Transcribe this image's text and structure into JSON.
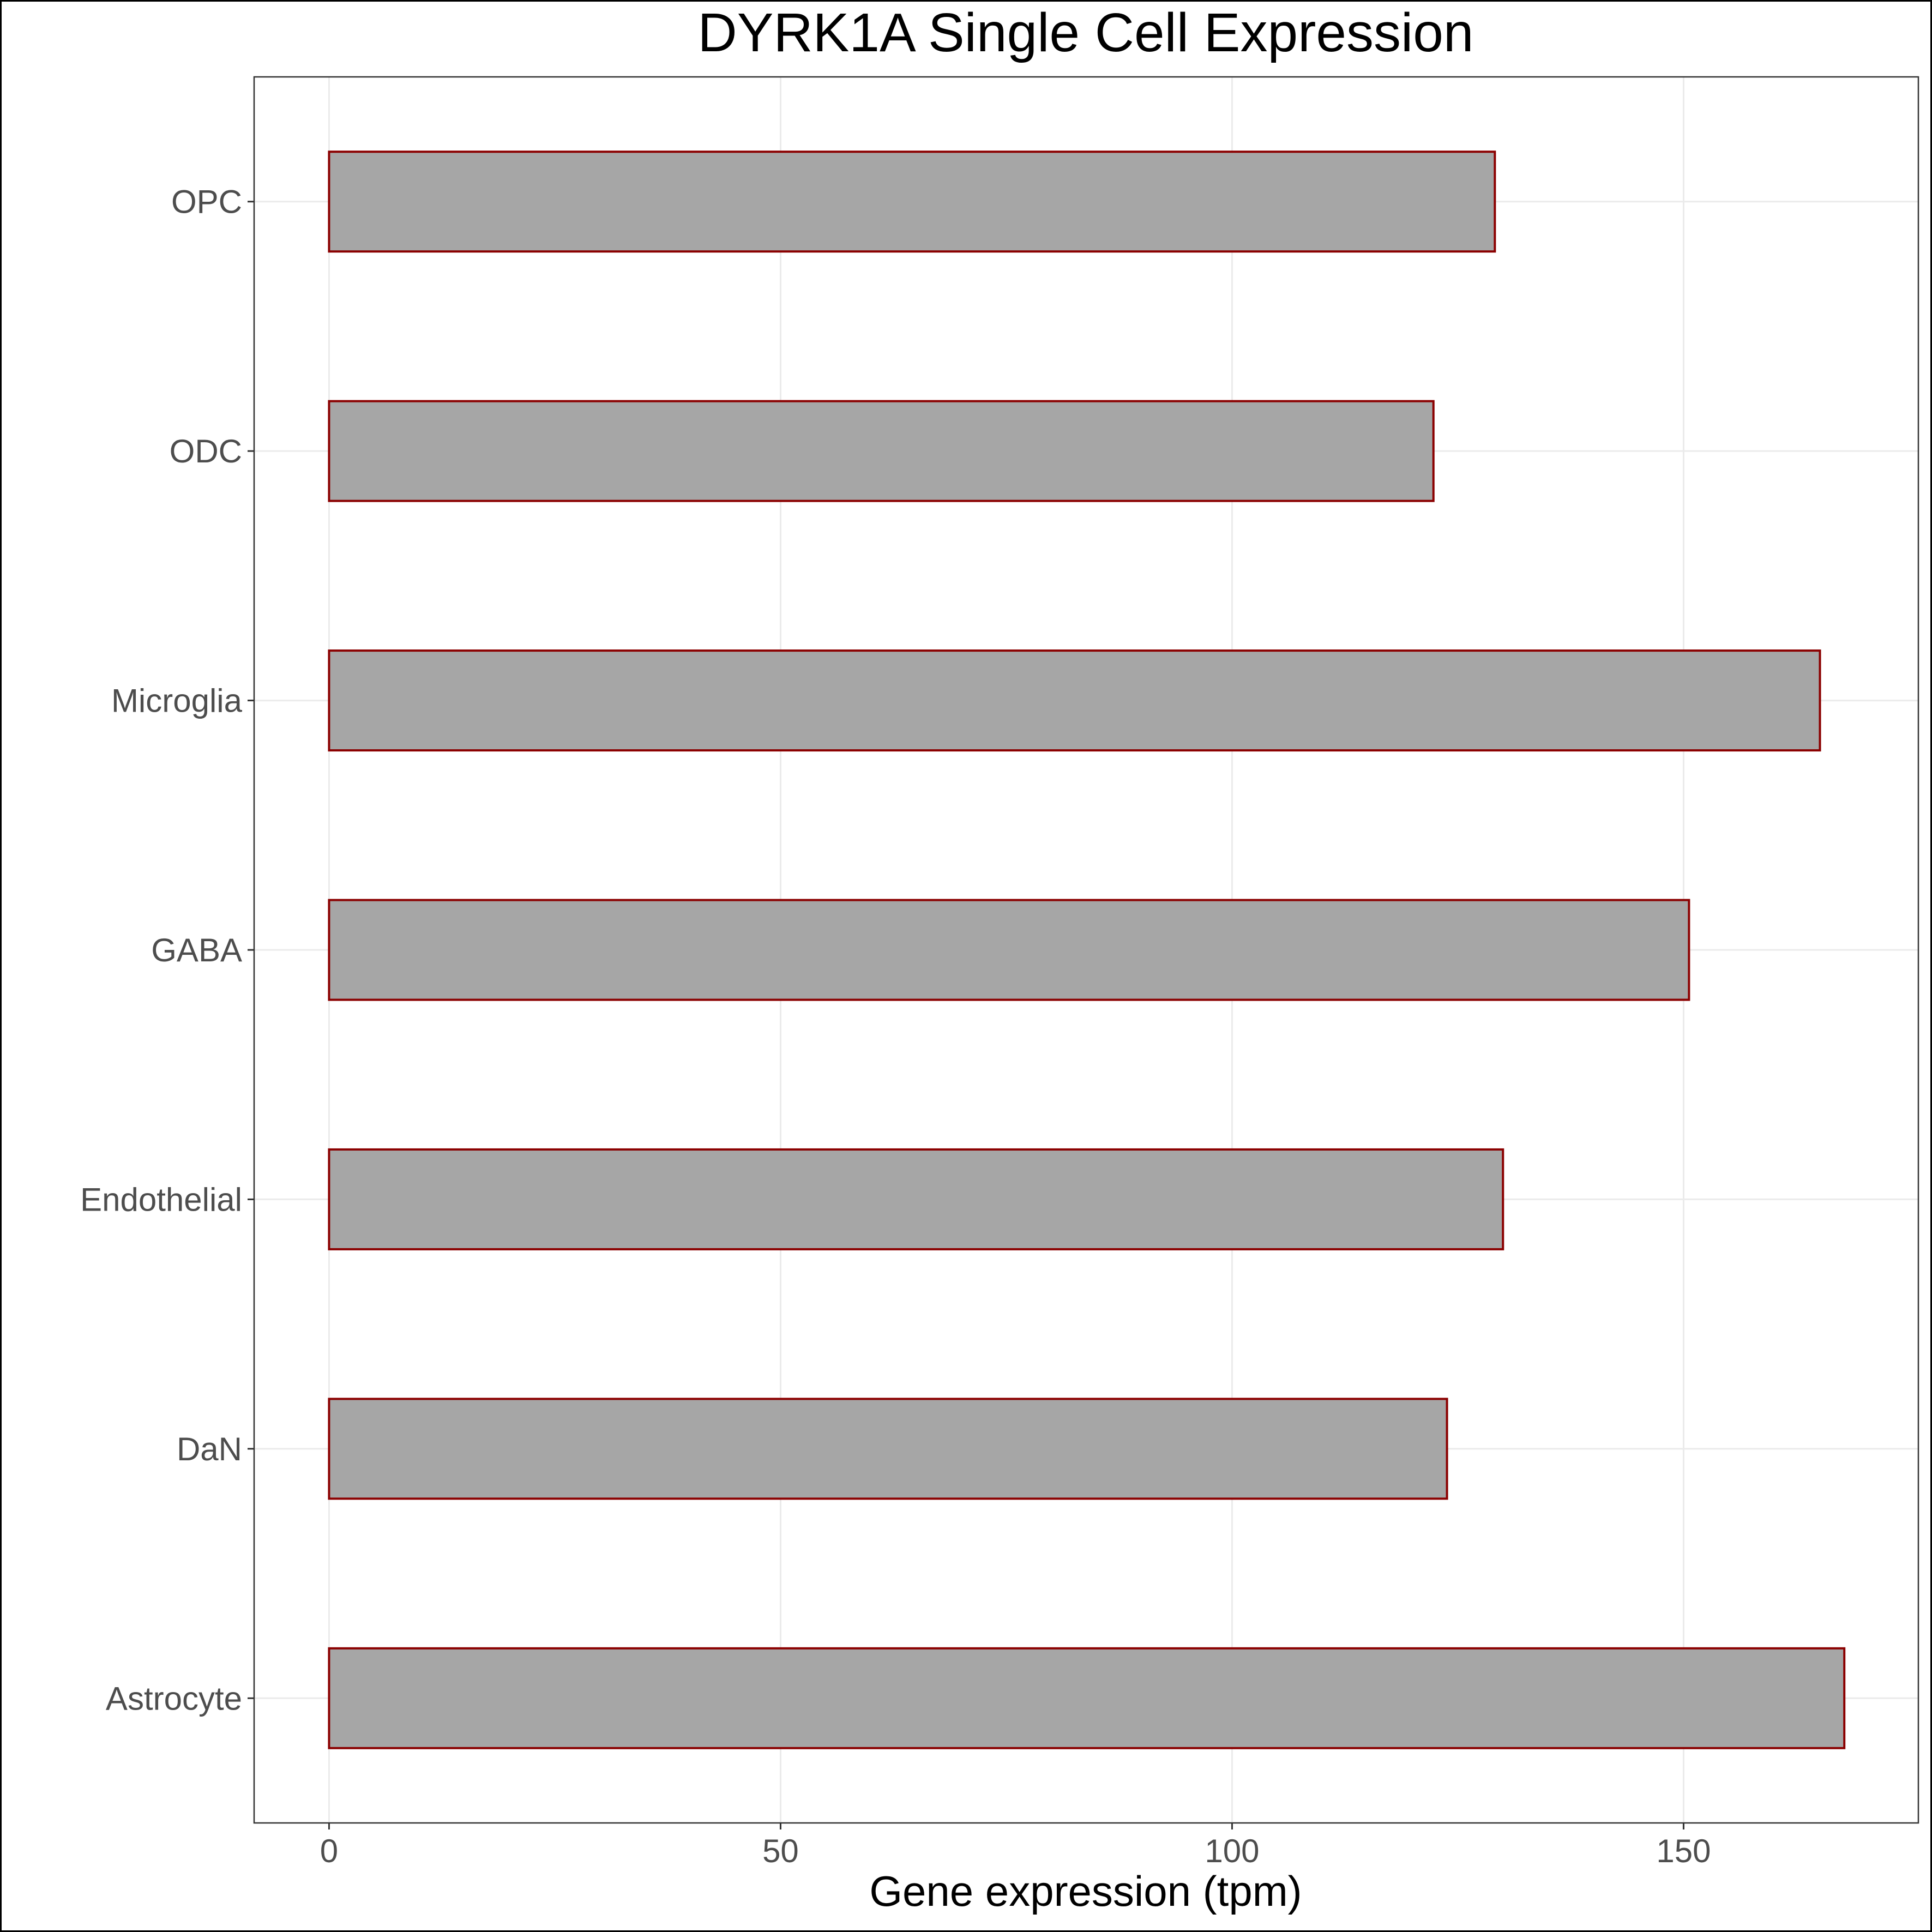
{
  "chart_data": {
    "type": "bar",
    "orientation": "horizontal",
    "title": "DYRK1A Single Cell Expression",
    "xlabel": "Gene expression (tpm)",
    "ylabel": "",
    "categories": [
      "Astrocyte",
      "DaN",
      "Endothelial",
      "GABA",
      "Microglia",
      "ODC",
      "OPC"
    ],
    "values": [
      167.8,
      123.8,
      130.0,
      150.6,
      165.1,
      122.3,
      129.1
    ],
    "xlim": [
      -8.3,
      176.0
    ],
    "xticks": [
      0,
      50,
      100,
      150
    ],
    "xtick_labels": [
      "0",
      "50",
      "100",
      "150"
    ],
    "grid": true,
    "legend": "none",
    "colors": {
      "bar_fill": "#a6a6a6",
      "bar_outline": "#8b0000",
      "grid": "#ebebeb",
      "panel_border": "#333333",
      "frame": "#000000"
    }
  }
}
